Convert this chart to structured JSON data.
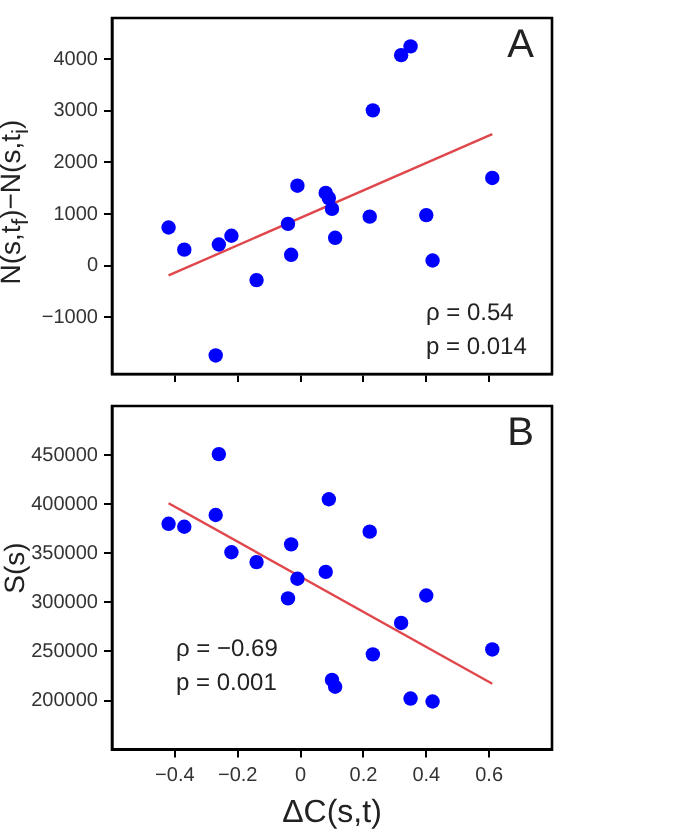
{
  "chart_data": [
    {
      "type": "scatter",
      "ylabel": "N(s,t$_{f}$)−N(s,t$_{i}$)",
      "xlim": [
        -0.6,
        0.8
      ],
      "xticks": [
        -0.4,
        -0.2,
        0,
        0.2,
        0.4,
        0.6
      ],
      "ylim": [
        -2100,
        4800
      ],
      "yticks": [
        -1000,
        0,
        1000,
        2000,
        3000,
        4000
      ],
      "tick_labels": "y",
      "grid": false,
      "legend": false,
      "annotations": [
        "A",
        "ρ = 0.54",
        "p = 0.014"
      ],
      "series": [
        {
          "marker": "circle",
          "color": "#0000ff",
          "x": [
            -0.42,
            -0.37,
            -0.26,
            -0.22,
            -0.27,
            -0.14,
            -0.04,
            -0.03,
            -0.01,
            0.08,
            0.09,
            0.1,
            0.11,
            0.22,
            0.23,
            0.32,
            0.35,
            0.4,
            0.42,
            0.61
          ],
          "values": [
            740,
            310,
            410,
            580,
            -1740,
            -280,
            810,
            210,
            1550,
            1410,
            1310,
            1100,
            540,
            950,
            3010,
            4080,
            4250,
            980,
            100,
            1700
          ]
        },
        {
          "type": "line",
          "marker": "none",
          "color": "#e0474c",
          "x": [
            -0.42,
            0.61
          ],
          "values": [
            -190,
            2550
          ]
        }
      ]
    },
    {
      "type": "scatter",
      "ylabel": "S(s)",
      "xlabel": "ΔC(s,t)",
      "xlim": [
        -0.6,
        0.8
      ],
      "xticks": [
        -0.4,
        -0.2,
        0,
        0.2,
        0.4,
        0.6
      ],
      "ylim": [
        150000,
        500000
      ],
      "yticks": [
        200000,
        250000,
        300000,
        350000,
        400000,
        450000
      ],
      "grid": false,
      "legend": false,
      "annotations": [
        "B",
        "ρ = −0.69",
        "p = 0.001"
      ],
      "series": [
        {
          "marker": "circle",
          "color": "#0000ff",
          "x": [
            -0.42,
            -0.37,
            -0.26,
            -0.27,
            -0.22,
            -0.14,
            -0.03,
            -0.04,
            -0.01,
            0.08,
            0.09,
            0.1,
            0.11,
            0.22,
            0.23,
            0.32,
            0.35,
            0.4,
            0.42,
            0.61
          ],
          "values": [
            380000,
            377000,
            451000,
            389000,
            351000,
            341000,
            359000,
            304000,
            324000,
            331000,
            405000,
            221000,
            214000,
            372000,
            247000,
            279000,
            202000,
            307000,
            199000,
            252000
          ]
        },
        {
          "type": "line",
          "marker": "none",
          "color": "#e0474c",
          "x": [
            -0.42,
            0.61
          ],
          "values": [
            401000,
            217000
          ]
        }
      ]
    }
  ]
}
